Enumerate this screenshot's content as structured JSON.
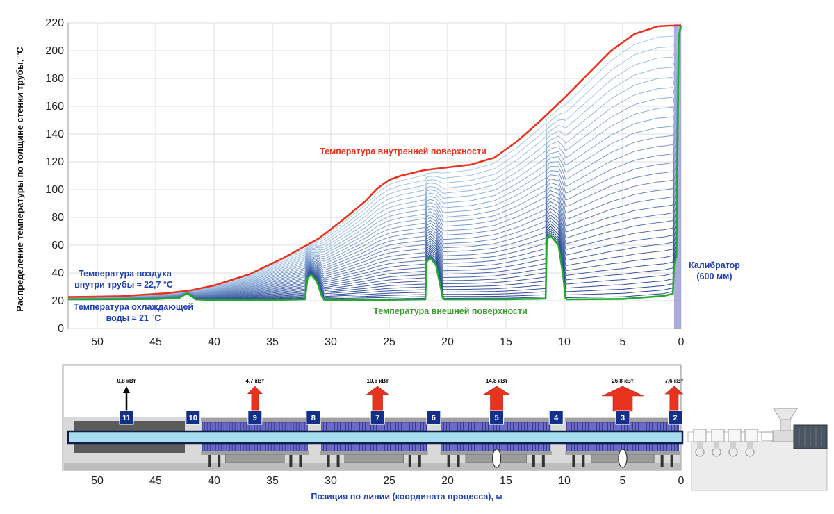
{
  "chart_data": [
    {
      "type": "line",
      "ylabel": "Распределение температуры по толщине стенки трубы, °C",
      "xlim": [
        52.5,
        0
      ],
      "ylim": [
        0,
        220
      ],
      "x_ticks": [
        50,
        45,
        40,
        35,
        30,
        25,
        20,
        15,
        10,
        5,
        0
      ],
      "y_ticks": [
        0,
        20,
        40,
        60,
        80,
        100,
        120,
        140,
        160,
        180,
        200,
        220
      ],
      "grid": true,
      "layer_count": 34,
      "series": [
        {
          "name": "Температура внутренней поверхности",
          "color": "#e8331e",
          "x": [
            52.5,
            48,
            44,
            42,
            40,
            37,
            34,
            31,
            29,
            27,
            26,
            25,
            24,
            22,
            20,
            18,
            16,
            14,
            12,
            10,
            8,
            6,
            4,
            2,
            1,
            0
          ],
          "y": [
            22.7,
            23.3,
            25.5,
            27.5,
            31,
            39,
            51,
            65,
            78,
            92,
            101,
            107,
            110,
            114,
            116,
            118,
            123,
            135,
            150,
            166,
            183,
            200,
            212,
            217.5,
            218,
            218
          ]
        },
        {
          "name": "Температура внешней поверхности",
          "color": "#1faa2e",
          "x": [
            52.5,
            45,
            43,
            42.3,
            41.6,
            40.5,
            35,
            32.2,
            32,
            31.7,
            31.2,
            30.8,
            30.6,
            30.5,
            26,
            21.9,
            21.8,
            21.5,
            21,
            20.6,
            20.4,
            20.3,
            15,
            11.6,
            11.5,
            11.2,
            10.5,
            10.1,
            9.9,
            9.8,
            5,
            1.5,
            1,
            0.7,
            0.6,
            0.4,
            0.2,
            0
          ],
          "y": [
            21,
            21.2,
            22,
            25.5,
            21,
            20.5,
            20.5,
            21,
            36,
            39,
            34,
            24,
            21,
            20.5,
            20.5,
            21,
            48,
            51,
            46,
            30,
            21.5,
            21,
            21,
            21.5,
            64,
            67,
            60,
            38,
            22,
            21,
            21.3,
            23.5,
            24.5,
            25,
            46,
            52,
            210,
            218
          ]
        }
      ],
      "annotations": [
        "Температура внутренней поверхности",
        "Температура внешней поверхности",
        "Температура воздуха",
        "внутри трубы ≈ 22,7 °C",
        "Температура охлаждающей",
        "воды ≈ 21 °C",
        "Калибратор",
        "(600 мм)"
      ]
    },
    {
      "type": "diagram",
      "xlabel": "Позиция по линии (координата процесса), м",
      "xlim": [
        52.5,
        0
      ],
      "x_ticks": [
        50,
        45,
        40,
        35,
        30,
        25,
        20,
        15,
        10,
        5,
        0
      ],
      "heat_flows": [
        {
          "position": 47.5,
          "power_kw": 0.8,
          "label": "0,8 кВт",
          "color": "#000000"
        },
        {
          "position": 36.5,
          "power_kw": 4.7,
          "label": "4,7 кВт",
          "color": "#e8331e"
        },
        {
          "position": 26.0,
          "power_kw": 10.6,
          "label": "10,6 кВт",
          "color": "#e8331e"
        },
        {
          "position": 15.8,
          "power_kw": 14.8,
          "label": "14,8 кВт",
          "color": "#e8331e"
        },
        {
          "position": 5.0,
          "power_kw": 26.8,
          "label": "26,8 кВт",
          "color": "#e8331e"
        },
        {
          "position": 0.6,
          "power_kw": 7.6,
          "label": "7,6 кВт",
          "color": "#e8331e"
        }
      ],
      "zones": [
        {
          "label": "11",
          "position": 47.5
        },
        {
          "label": "10",
          "position": 41.8
        },
        {
          "label": "9",
          "position": 36.5
        },
        {
          "label": "8",
          "position": 31.5
        },
        {
          "label": "7",
          "position": 26.0
        },
        {
          "label": "6",
          "position": 21.2
        },
        {
          "label": "5",
          "position": 15.8
        },
        {
          "label": "4",
          "position": 10.7
        },
        {
          "label": "3",
          "position": 5.0
        },
        {
          "label": "2",
          "position": 0.5
        }
      ],
      "cooling_baths": [
        {
          "from": 41.0,
          "to": 32.0
        },
        {
          "from": 30.8,
          "to": 21.8
        },
        {
          "from": 20.5,
          "to": 11.2
        },
        {
          "from": 9.8,
          "to": 0.2
        }
      ],
      "air_section": {
        "from": 52.5,
        "to": 42.5
      }
    }
  ],
  "colors": {
    "inner": "#e8331e",
    "outer": "#1faa2e",
    "layer_dark": "#1e3a8a",
    "layer_light": "#a9cdee",
    "annotation_blue": "#1f3fb0",
    "zone_box": "#12308a",
    "calibrator": "#8f8fd0"
  }
}
